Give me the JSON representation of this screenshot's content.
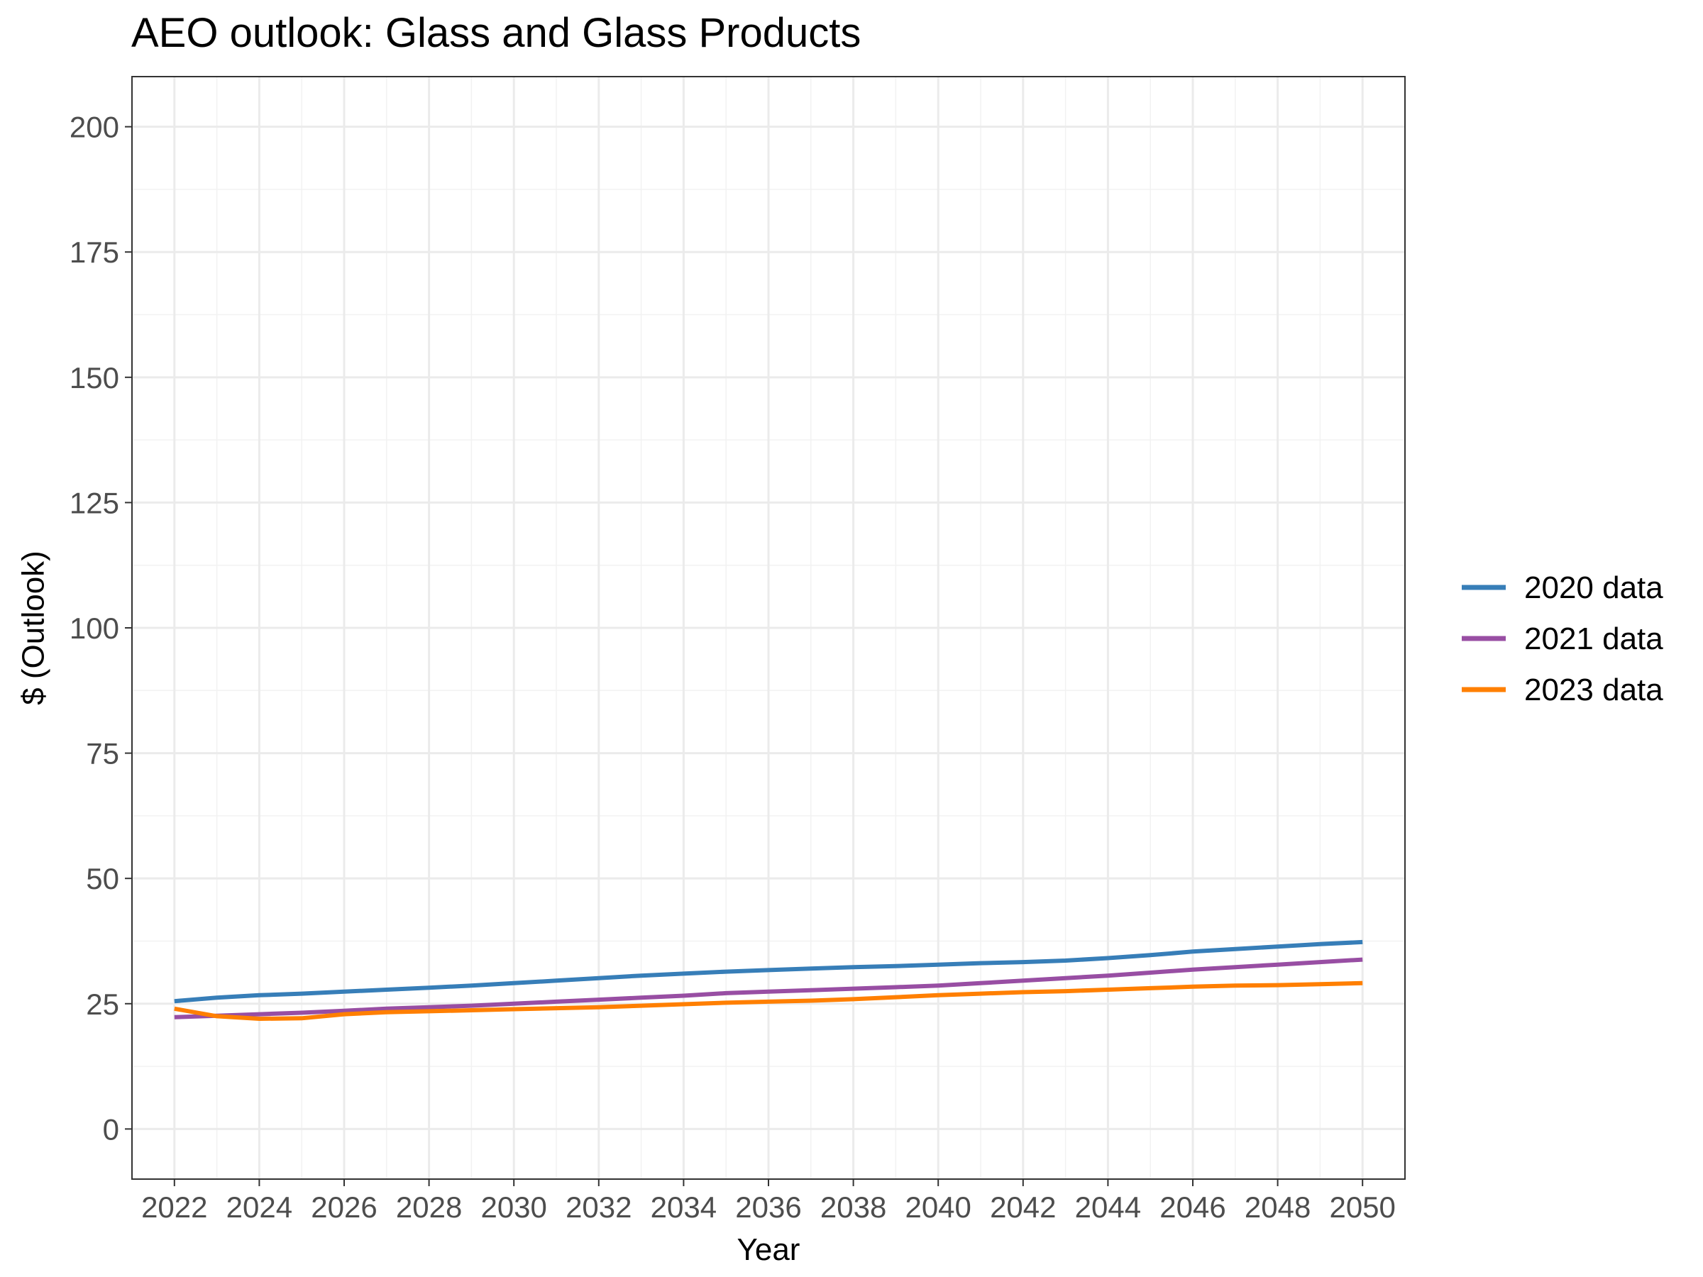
{
  "chart_data": {
    "type": "line",
    "title": "AEO outlook: Glass and Glass Products",
    "xlabel": "Year",
    "ylabel": "$ (Outlook)",
    "xlim": [
      2021,
      2051
    ],
    "ylim": [
      -10,
      210
    ],
    "x_ticks": [
      2022,
      2024,
      2026,
      2028,
      2030,
      2032,
      2034,
      2036,
      2038,
      2040,
      2042,
      2044,
      2046,
      2048,
      2050
    ],
    "y_ticks": [
      0,
      25,
      50,
      75,
      100,
      125,
      150,
      175,
      200
    ],
    "grid": true,
    "legend_position": "right",
    "x": [
      2022,
      2023,
      2024,
      2025,
      2026,
      2027,
      2028,
      2029,
      2030,
      2031,
      2032,
      2033,
      2034,
      2035,
      2036,
      2037,
      2038,
      2039,
      2040,
      2041,
      2042,
      2043,
      2044,
      2045,
      2046,
      2047,
      2048,
      2049,
      2050
    ],
    "series": [
      {
        "name": "2020 data",
        "color": "#377EB8",
        "values": [
          25.5,
          26.2,
          26.7,
          27.0,
          27.4,
          27.8,
          28.2,
          28.6,
          29.1,
          29.6,
          30.1,
          30.6,
          31.0,
          31.4,
          31.7,
          32.0,
          32.3,
          32.5,
          32.8,
          33.1,
          33.3,
          33.6,
          34.1,
          34.7,
          35.4,
          35.9,
          36.4,
          36.9,
          37.3
        ]
      },
      {
        "name": "2021 data",
        "color": "#984EA3",
        "values": [
          22.3,
          22.6,
          22.9,
          23.2,
          23.6,
          24.0,
          24.3,
          24.6,
          25.0,
          25.4,
          25.8,
          26.2,
          26.6,
          27.1,
          27.4,
          27.7,
          28.0,
          28.3,
          28.6,
          29.1,
          29.6,
          30.1,
          30.6,
          31.2,
          31.8,
          32.3,
          32.8,
          33.3,
          33.8
        ]
      },
      {
        "name": "2023 data",
        "color": "#FF7F00",
        "values": [
          24.0,
          22.5,
          22.0,
          22.1,
          22.9,
          23.3,
          23.5,
          23.7,
          23.9,
          24.1,
          24.3,
          24.6,
          24.9,
          25.2,
          25.4,
          25.6,
          25.9,
          26.3,
          26.7,
          27.0,
          27.3,
          27.5,
          27.8,
          28.1,
          28.4,
          28.6,
          28.7,
          28.9,
          29.1
        ]
      }
    ]
  }
}
